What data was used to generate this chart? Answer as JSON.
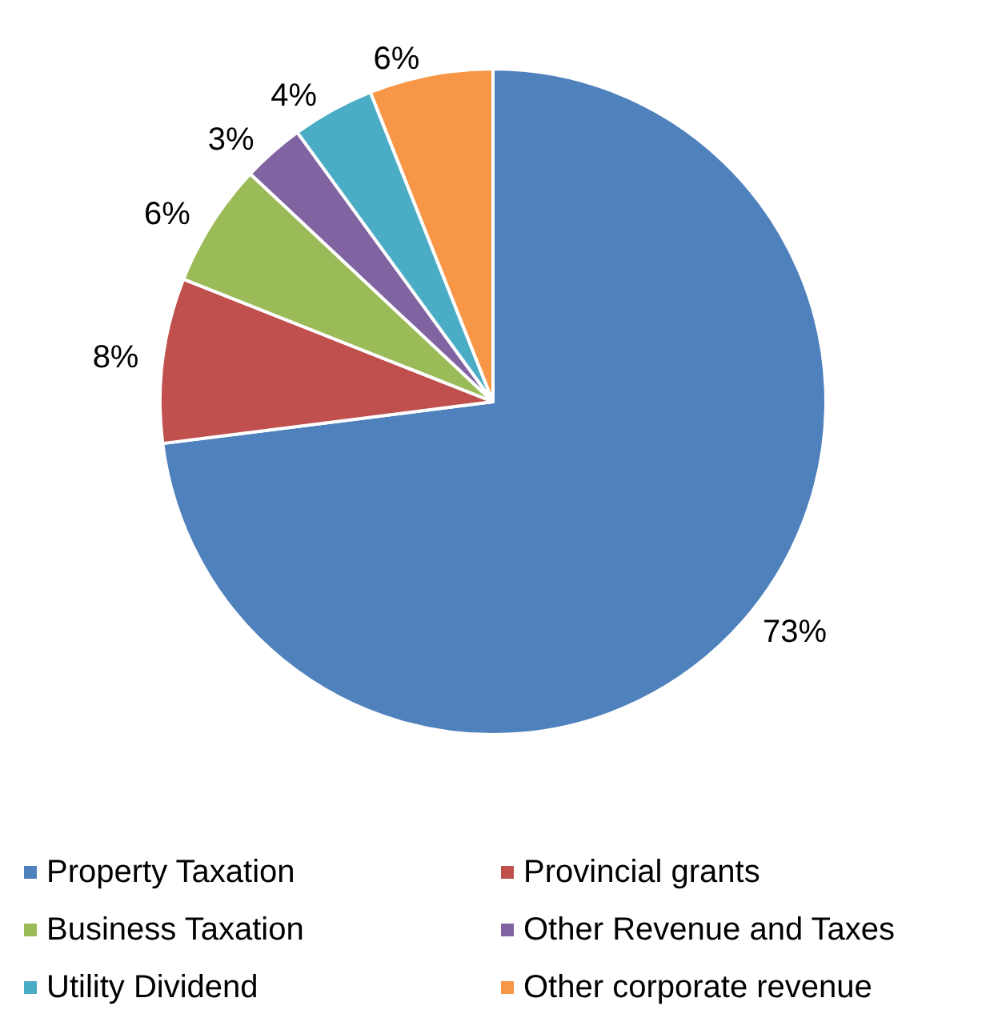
{
  "chart_data": {
    "type": "pie",
    "categories": [
      "Property Taxation",
      "Provincial grants",
      "Business Taxation",
      "Other Revenue and Taxes",
      "Utility Dividend",
      "Other corporate revenue"
    ],
    "values": [
      73,
      8,
      6,
      3,
      4,
      6
    ],
    "colors": [
      "#4f81bd",
      "#c0504d",
      "#9bbb59",
      "#8064a2",
      "#4bacc6",
      "#f79646"
    ],
    "value_labels": [
      "73%",
      "8%",
      "6%",
      "3%",
      "4%",
      "6%"
    ],
    "legend": "bottom"
  }
}
